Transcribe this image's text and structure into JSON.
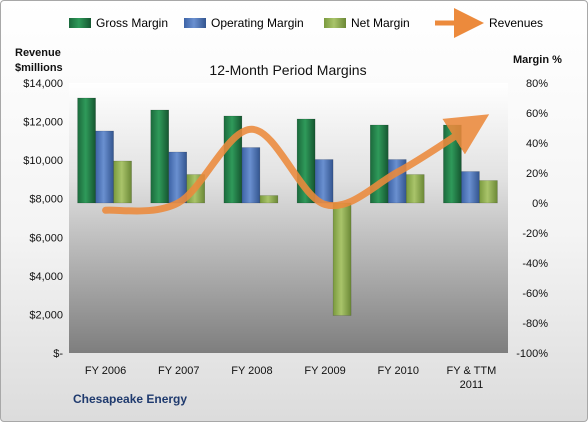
{
  "chart_data": {
    "type": "bar",
    "title": "12-Month Period Margins",
    "company": "Chesapeake Energy",
    "left_axis_label": [
      "Revenue",
      "$millions"
    ],
    "right_axis_label": "Margin %",
    "categories": [
      [
        "FY 2006"
      ],
      [
        "FY 2007"
      ],
      [
        "FY 2008"
      ],
      [
        "FY 2009"
      ],
      [
        "FY 2010"
      ],
      [
        "FY & TTM",
        "2011"
      ]
    ],
    "left_ticks": [
      "$-",
      "$2,000",
      "$4,000",
      "$6,000",
      "$8,000",
      "$10,000",
      "$12,000",
      "$14,000"
    ],
    "right_ticks": [
      "-100%",
      "-80%",
      "-60%",
      "-40%",
      "-20%",
      "0%",
      "20%",
      "40%",
      "60%",
      "80%"
    ],
    "ylim_left": [
      0,
      14000
    ],
    "ylim_right": [
      -100,
      80
    ],
    "series": [
      {
        "name": "Gross Margin",
        "axis": "right",
        "color": "#1e7b45",
        "values": [
          70,
          62,
          58,
          56,
          52,
          52
        ]
      },
      {
        "name": "Operating Margin",
        "axis": "right",
        "color": "#4a72b8",
        "values": [
          48,
          34,
          37,
          29,
          29,
          21
        ]
      },
      {
        "name": "Net Margin",
        "axis": "right",
        "color": "#8fae4e",
        "values": [
          28,
          19,
          5,
          -75,
          19,
          15
        ]
      }
    ],
    "line_series": {
      "name": "Revenues",
      "axis": "left",
      "color": "#ec8a3c",
      "values": [
        7400,
        7800,
        11600,
        7700,
        9400,
        11800
      ]
    },
    "legend_position": "top",
    "grid": false
  }
}
